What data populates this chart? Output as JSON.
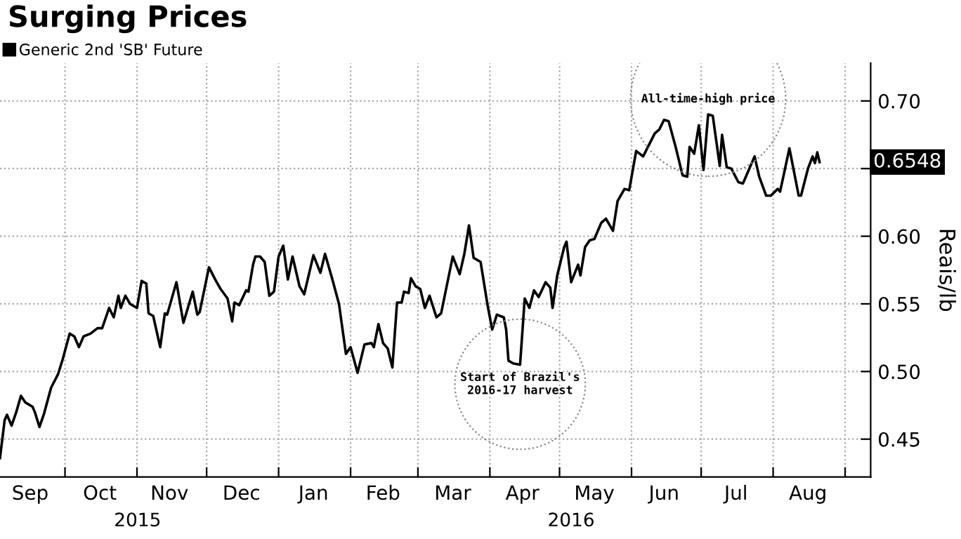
{
  "chart_data": {
    "type": "line",
    "title": "Surging Prices",
    "ylabel": "Reais/lb",
    "series": [
      {
        "name": "Generic 2nd 'SB' Future",
        "color": "#000000",
        "x": [
          "2015-09-03",
          "2015-09-05",
          "2015-09-06",
          "2015-09-08",
          "2015-09-10",
          "2015-09-12",
          "2015-09-14",
          "2015-09-17",
          "2015-09-18",
          "2015-09-20",
          "2015-09-22",
          "2015-09-25",
          "2015-09-28",
          "2015-09-30",
          "2015-10-03",
          "2015-10-05",
          "2015-10-07",
          "2015-10-09",
          "2015-10-12",
          "2015-10-15",
          "2015-10-17",
          "2015-10-20",
          "2015-10-22",
          "2015-10-24",
          "2015-10-25",
          "2015-10-27",
          "2015-10-29",
          "2015-11-01",
          "2015-11-03",
          "2015-11-05",
          "2015-11-06",
          "2015-11-08",
          "2015-11-11",
          "2015-11-13",
          "2015-11-14",
          "2015-11-18",
          "2015-11-21",
          "2015-11-25",
          "2015-11-27",
          "2015-11-28",
          "2015-12-02",
          "2015-12-05",
          "2015-12-07",
          "2015-12-10",
          "2015-12-12",
          "2015-12-13",
          "2015-12-15",
          "2015-12-18",
          "2015-12-19",
          "2015-12-21",
          "2015-12-22",
          "2015-12-24",
          "2015-12-26",
          "2015-12-28",
          "2015-12-30",
          "2016-01-01",
          "2016-01-03",
          "2016-01-05",
          "2016-01-07",
          "2016-01-10",
          "2016-01-12",
          "2016-01-16",
          "2016-01-19",
          "2016-01-21",
          "2016-01-24",
          "2016-01-27",
          "2016-01-30",
          "2016-02-01",
          "2016-02-04",
          "2016-02-07",
          "2016-02-10",
          "2016-02-11",
          "2016-02-13",
          "2016-02-15",
          "2016-02-17",
          "2016-02-19",
          "2016-02-21",
          "2016-02-23",
          "2016-02-24",
          "2016-02-26",
          "2016-02-27",
          "2016-02-29",
          "2016-03-02",
          "2016-03-04",
          "2016-03-06",
          "2016-03-09",
          "2016-03-11",
          "2016-03-16",
          "2016-03-19",
          "2016-03-21",
          "2016-03-23",
          "2016-03-25",
          "2016-03-28",
          "2016-03-31",
          "2016-04-02",
          "2016-04-04",
          "2016-04-07",
          "2016-04-08",
          "2016-04-09",
          "2016-04-11",
          "2016-04-14",
          "2016-04-16",
          "2016-04-18",
          "2016-04-20",
          "2016-04-22",
          "2016-04-25",
          "2016-04-27",
          "2016-04-28",
          "2016-04-30",
          "2016-05-03",
          "2016-05-04",
          "2016-05-06",
          "2016-05-09",
          "2016-05-10",
          "2016-05-12",
          "2016-05-14",
          "2016-05-16",
          "2016-05-19",
          "2016-05-21",
          "2016-05-24",
          "2016-05-26",
          "2016-05-29",
          "2016-05-31",
          "2016-06-03",
          "2016-06-06",
          "2016-06-11",
          "2016-06-13",
          "2016-06-15",
          "2016-06-17",
          "2016-06-20",
          "2016-06-23",
          "2016-06-25",
          "2016-06-26",
          "2016-06-28",
          "2016-06-30",
          "2016-07-02",
          "2016-07-04",
          "2016-07-06",
          "2016-07-09",
          "2016-07-10",
          "2016-07-12",
          "2016-07-14",
          "2016-07-17",
          "2016-07-19",
          "2016-07-22",
          "2016-07-24",
          "2016-07-26",
          "2016-07-29",
          "2016-07-31",
          "2016-08-03",
          "2016-08-04",
          "2016-08-08",
          "2016-08-12",
          "2016-08-13",
          "2016-08-16",
          "2016-08-18",
          "2016-08-19",
          "2016-08-20",
          "2016-08-21"
        ],
        "values": [
          0.436,
          0.464,
          0.468,
          0.46,
          0.47,
          0.482,
          0.477,
          0.474,
          0.47,
          0.459,
          0.469,
          0.488,
          0.498,
          0.509,
          0.528,
          0.526,
          0.518,
          0.526,
          0.528,
          0.532,
          0.532,
          0.547,
          0.54,
          0.556,
          0.547,
          0.556,
          0.55,
          0.547,
          0.567,
          0.565,
          0.543,
          0.541,
          0.518,
          0.543,
          0.542,
          0.566,
          0.536,
          0.559,
          0.542,
          0.544,
          0.577,
          0.567,
          0.561,
          0.554,
          0.537,
          0.551,
          0.549,
          0.56,
          0.559,
          0.579,
          0.585,
          0.585,
          0.581,
          0.556,
          0.559,
          0.585,
          0.593,
          0.568,
          0.585,
          0.563,
          0.557,
          0.586,
          0.573,
          0.587,
          0.569,
          0.55,
          0.513,
          0.518,
          0.499,
          0.52,
          0.521,
          0.518,
          0.535,
          0.521,
          0.517,
          0.503,
          0.551,
          0.551,
          0.559,
          0.558,
          0.569,
          0.563,
          0.561,
          0.547,
          0.556,
          0.54,
          0.543,
          0.585,
          0.572,
          0.587,
          0.608,
          0.584,
          0.581,
          0.549,
          0.531,
          0.542,
          0.54,
          0.531,
          0.508,
          0.506,
          0.505,
          0.554,
          0.547,
          0.56,
          0.555,
          0.566,
          0.562,
          0.547,
          0.571,
          0.592,
          0.596,
          0.566,
          0.579,
          0.571,
          0.592,
          0.597,
          0.598,
          0.61,
          0.613,
          0.604,
          0.626,
          0.635,
          0.634,
          0.663,
          0.659,
          0.676,
          0.679,
          0.686,
          0.685,
          0.666,
          0.645,
          0.644,
          0.666,
          0.661,
          0.682,
          0.649,
          0.69,
          0.689,
          0.652,
          0.675,
          0.651,
          0.65,
          0.64,
          0.639,
          0.651,
          0.659,
          0.644,
          0.63,
          0.63,
          0.635,
          0.633,
          0.665,
          0.63,
          0.63,
          0.65,
          0.659,
          0.654,
          0.662,
          0.6548
        ]
      }
    ],
    "xlim": [
      "2015-09-03",
      "2016-09-12"
    ],
    "xticks": [
      {
        "value": "2015-10-01",
        "label": null
      },
      {
        "value": "2015-11-01",
        "label": null
      },
      {
        "value": "2015-12-01",
        "label": null
      },
      {
        "value": "2016-01-01",
        "label": null
      },
      {
        "value": "2016-02-01",
        "label": null
      },
      {
        "value": "2016-03-01",
        "label": null
      },
      {
        "value": "2016-04-01",
        "label": null
      },
      {
        "value": "2016-05-01",
        "label": null
      },
      {
        "value": "2016-06-01",
        "label": null
      },
      {
        "value": "2016-07-01",
        "label": null
      },
      {
        "value": "2016-08-01",
        "label": null
      },
      {
        "value": "2016-09-01",
        "label": null
      },
      {
        "value": "2015-09-16",
        "label": "Sep"
      },
      {
        "value": "2015-10-16",
        "label": "Oct"
      },
      {
        "value": "2015-11-15",
        "label": "Nov"
      },
      {
        "value": "2015-12-16",
        "label": "Dec"
      },
      {
        "value": "2016-01-16",
        "label": "Jan"
      },
      {
        "value": "2016-02-15",
        "label": "Feb"
      },
      {
        "value": "2016-03-16",
        "label": "Mar"
      },
      {
        "value": "2016-04-15",
        "label": "Apr"
      },
      {
        "value": "2016-05-16",
        "label": "May"
      },
      {
        "value": "2016-06-15",
        "label": "Jun"
      },
      {
        "value": "2016-07-16",
        "label": "Jul"
      },
      {
        "value": "2016-08-16",
        "label": "Aug"
      }
    ],
    "ylim": [
      0.422,
      0.728
    ],
    "yticks": [
      0.45,
      {
        "value": 0.5,
        "label": "0.50"
      },
      0.55,
      {
        "value": 0.6,
        "label": "0.60"
      },
      {
        "value": 0.65,
        "label": null
      },
      {
        "value": 0.7,
        "label": "0.70"
      }
    ],
    "grid": true,
    "legend": "top left",
    "line_style": "solid",
    "marker": "none",
    "annotations": [
      {
        "text": "All-time-high price",
        "x": "2016-07-04",
        "y": 0.69
      },
      {
        "text": "Start of Brazil's\n2016-17 harvest",
        "x": "2016-04-14",
        "y": 0.505
      },
      {
        "text": "0.6548",
        "x": "2016-08-21",
        "y": 0.6548
      },
      "2015",
      "2016"
    ]
  }
}
